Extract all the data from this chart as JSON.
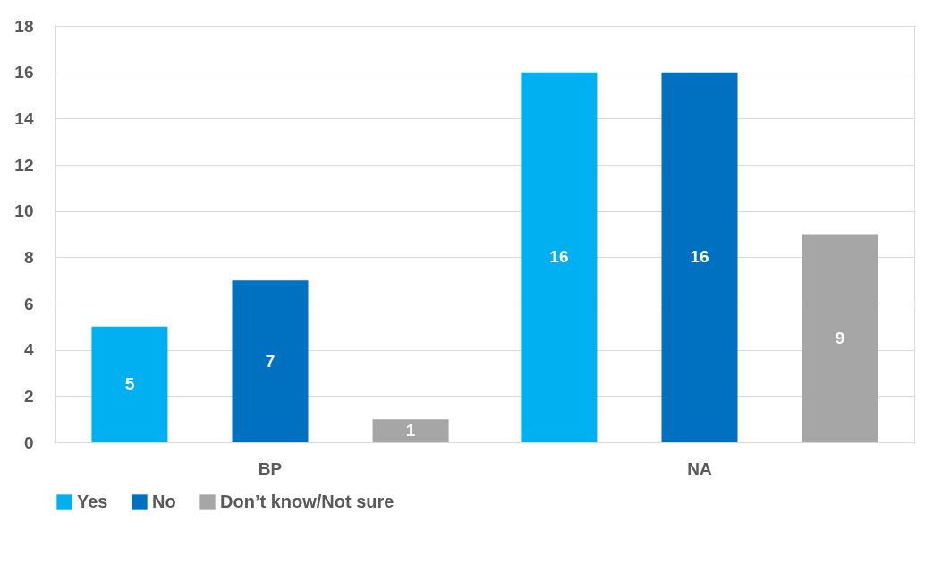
{
  "chart_data": {
    "type": "bar",
    "categories": [
      "BP",
      "NA"
    ],
    "series": [
      {
        "name": "Yes",
        "color": "#00b0f0",
        "values": [
          5,
          16
        ]
      },
      {
        "name": "No",
        "color": "#0070c0",
        "values": [
          7,
          16
        ]
      },
      {
        "name": "Don’t know/Not sure",
        "color": "#a6a6a6",
        "values": [
          1,
          9
        ]
      }
    ],
    "ylim": [
      0,
      18
    ],
    "yticks": [
      0,
      2,
      4,
      6,
      8,
      10,
      12,
      14,
      16,
      18
    ],
    "grid": "y",
    "legend": "bottom",
    "data_labels": true
  }
}
